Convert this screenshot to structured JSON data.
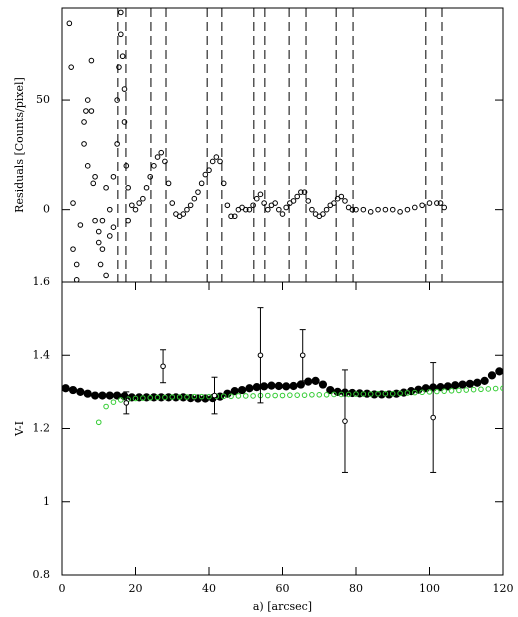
{
  "chart_data": [
    {
      "type": "scatter",
      "ylabel": "Residuals [Counts/pixel]",
      "xlim": [
        0,
        120
      ],
      "ylim": [
        -33,
        92
      ],
      "yticks": [
        0,
        50
      ],
      "vlines": [
        15.2,
        17.4,
        24.2,
        28.3,
        39.5,
        43.5,
        52.2,
        55.2,
        61.8,
        66.4,
        74.6,
        79.2,
        99,
        103.4
      ],
      "series": [
        {
          "color": "#000000",
          "marker": "open",
          "x": [
            2,
            2.5,
            3,
            3,
            4,
            4,
            5,
            6,
            6,
            6.5,
            7,
            7,
            8,
            8,
            8.5,
            9,
            9,
            10,
            10,
            10.5,
            11,
            11,
            12,
            12,
            13,
            13,
            14,
            14,
            15,
            15,
            15.5,
            16,
            16,
            16.5,
            17,
            17,
            17.5,
            18,
            18,
            19,
            20,
            21,
            22,
            23,
            24,
            25,
            26,
            27,
            28,
            29,
            30,
            31,
            32,
            33,
            34,
            35,
            36,
            37,
            38,
            39,
            40,
            41,
            42,
            43,
            44,
            45,
            46,
            47,
            48,
            49,
            50,
            51,
            52,
            53,
            54,
            55,
            56,
            57,
            58,
            59,
            60,
            61,
            62,
            63,
            64,
            65,
            66,
            67,
            68,
            69,
            70,
            71,
            72,
            73,
            74,
            75,
            76,
            77,
            78,
            79,
            80,
            82,
            84,
            86,
            88,
            90,
            92,
            94,
            96,
            98,
            100,
            102,
            103,
            104
          ],
          "values": [
            85,
            65,
            3,
            -18,
            -25,
            -32,
            -7,
            40,
            30,
            45,
            20,
            50,
            68,
            45,
            12,
            -5,
            15,
            -10,
            -15,
            -25,
            -18,
            -5,
            -30,
            10,
            0,
            -12,
            -8,
            15,
            30,
            50,
            65,
            80,
            90,
            70,
            40,
            55,
            20,
            10,
            -5,
            2,
            0,
            3,
            5,
            10,
            15,
            20,
            24,
            26,
            22,
            12,
            3,
            -2,
            -3,
            -2,
            0,
            2,
            5,
            8,
            12,
            16,
            18,
            22,
            24,
            22,
            12,
            2,
            -3,
            -3,
            0,
            1,
            0,
            0,
            2,
            5,
            7,
            3,
            0,
            2,
            3,
            0,
            -2,
            1,
            3,
            4,
            6,
            8,
            8,
            4,
            0,
            -2,
            -3,
            -2,
            0,
            2,
            3,
            5,
            6,
            4,
            1,
            0,
            0,
            0,
            -1,
            0,
            0,
            0,
            -1,
            0,
            1,
            2,
            3,
            3,
            3,
            1
          ]
        }
      ]
    },
    {
      "type": "errorscatter",
      "xlabel": "a) [arcsec]",
      "ylabel": "V-I",
      "xlim": [
        0,
        120
      ],
      "ylim": [
        0.8,
        1.6
      ],
      "xticks": [
        0,
        20,
        40,
        60,
        80,
        100,
        120
      ],
      "yticks": [
        0.8,
        1,
        1.2,
        1.4,
        1.6
      ],
      "series": [
        {
          "color": "#000000",
          "marker": "filled",
          "x": [
            1,
            3,
            5,
            7,
            9,
            11,
            13,
            15,
            17,
            19,
            21,
            23,
            25,
            27,
            29,
            31,
            33,
            35,
            37,
            39,
            41,
            43,
            45,
            47,
            49,
            51,
            53,
            55,
            57,
            59,
            61,
            63,
            65,
            67,
            69,
            71,
            73,
            75,
            77,
            79,
            81,
            83,
            85,
            87,
            89,
            91,
            93,
            95,
            97,
            99,
            101,
            103,
            105,
            107,
            109,
            111,
            113,
            115,
            117,
            119
          ],
          "values": [
            1.31,
            1.305,
            1.3,
            1.295,
            1.29,
            1.29,
            1.29,
            1.29,
            1.288,
            1.285,
            1.285,
            1.285,
            1.285,
            1.285,
            1.285,
            1.285,
            1.285,
            1.283,
            1.282,
            1.282,
            1.283,
            1.287,
            1.295,
            1.302,
            1.305,
            1.31,
            1.313,
            1.315,
            1.317,
            1.316,
            1.315,
            1.316,
            1.32,
            1.328,
            1.33,
            1.32,
            1.305,
            1.3,
            1.298,
            1.297,
            1.296,
            1.295,
            1.293,
            1.293,
            1.293,
            1.295,
            1.298,
            1.302,
            1.306,
            1.31,
            1.312,
            1.313,
            1.315,
            1.318,
            1.32,
            1.322,
            1.325,
            1.33,
            1.345,
            1.356
          ]
        },
        {
          "color": "#33cc33",
          "marker": "open",
          "x": [
            10,
            12,
            14,
            16,
            18,
            20,
            22,
            24,
            26,
            28,
            30,
            32,
            34,
            36,
            38,
            40,
            42,
            44,
            46,
            48,
            50,
            52,
            54,
            56,
            58,
            60,
            62,
            64,
            66,
            68,
            70,
            72,
            74,
            76,
            78,
            80,
            82,
            84,
            86,
            88,
            90,
            92,
            94,
            96,
            98,
            100,
            102,
            104,
            106,
            108,
            110,
            112,
            114,
            116,
            118,
            120
          ],
          "values": [
            1.217,
            1.26,
            1.272,
            1.278,
            1.28,
            1.282,
            1.283,
            1.284,
            1.285,
            1.285,
            1.286,
            1.286,
            1.286,
            1.287,
            1.287,
            1.287,
            1.288,
            1.288,
            1.288,
            1.289,
            1.289,
            1.289,
            1.29,
            1.29,
            1.29,
            1.29,
            1.291,
            1.291,
            1.291,
            1.292,
            1.292,
            1.292,
            1.293,
            1.293,
            1.293,
            1.294,
            1.294,
            1.294,
            1.295,
            1.295,
            1.295,
            1.296,
            1.297,
            1.298,
            1.299,
            1.3,
            1.301,
            1.302,
            1.303,
            1.304,
            1.305,
            1.306,
            1.307,
            1.308,
            1.309,
            1.31
          ]
        },
        {
          "color": "#000000",
          "marker": "errorbar",
          "x": [
            17.5,
            27.5,
            41.5,
            54,
            65.5,
            77,
            101
          ],
          "values": [
            1.27,
            1.37,
            1.29,
            1.4,
            1.4,
            1.22,
            1.23
          ],
          "errors": [
            0.03,
            0.045,
            0.05,
            0.13,
            0.07,
            0.14,
            0.15
          ]
        }
      ]
    }
  ]
}
